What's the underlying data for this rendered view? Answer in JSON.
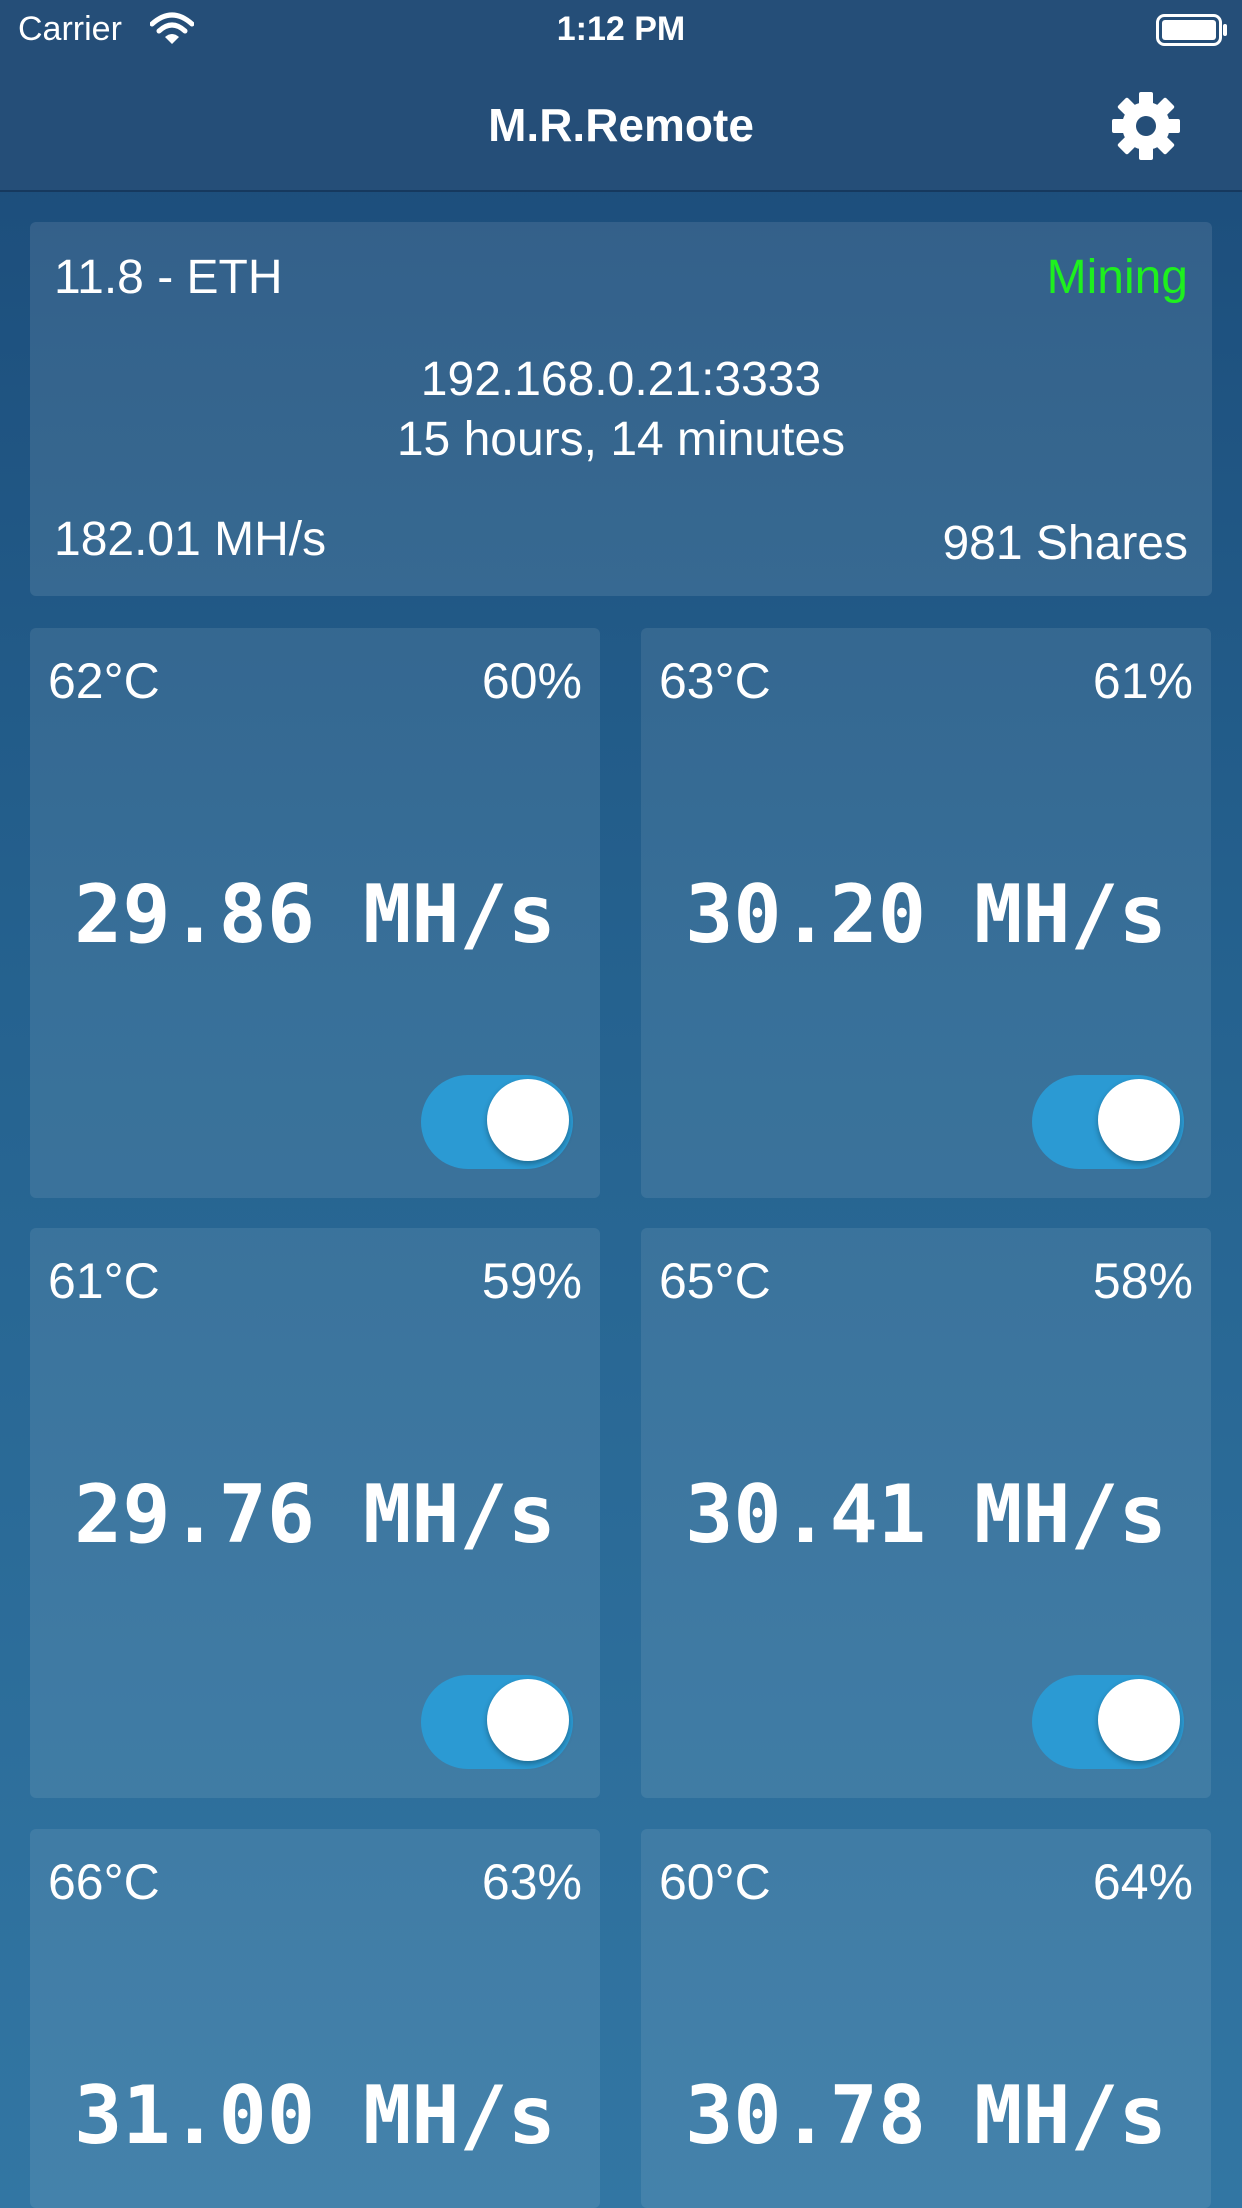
{
  "status_bar": {
    "carrier": "Carrier",
    "time": "1:12 PM"
  },
  "nav": {
    "title": "M.R.Remote",
    "settings_icon": "gear-icon"
  },
  "summary": {
    "version": "11.8 - ETH",
    "state": "Mining",
    "state_color": "#1ef01e",
    "address": "192.168.0.21:3333",
    "uptime": "15 hours, 14 minutes",
    "total_hashrate": "182.01 MH/s",
    "shares": "981 Shares"
  },
  "gpus": [
    {
      "temp": "62°C",
      "fan": "60%",
      "hashrate": "29.86 MH/s",
      "enabled": true
    },
    {
      "temp": "63°C",
      "fan": "61%",
      "hashrate": "30.20 MH/s",
      "enabled": true
    },
    {
      "temp": "61°C",
      "fan": "59%",
      "hashrate": "29.76 MH/s",
      "enabled": true
    },
    {
      "temp": "65°C",
      "fan": "58%",
      "hashrate": "30.41 MH/s",
      "enabled": true
    },
    {
      "temp": "66°C",
      "fan": "63%",
      "hashrate": "31.00 MH/s",
      "enabled": true
    },
    {
      "temp": "60°C",
      "fan": "64%",
      "hashrate": "30.78 MH/s",
      "enabled": true
    }
  ],
  "colors": {
    "accent": "#2b9ad3",
    "nav_background": "#254e78"
  }
}
